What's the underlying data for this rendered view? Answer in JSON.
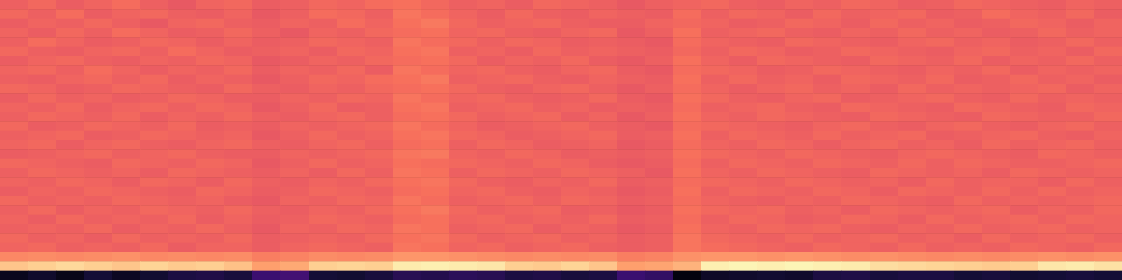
{
  "chart_data": {
    "type": "heatmap",
    "tick_labels": false,
    "xlim": [
      0,
      40
    ],
    "ylim": [
      0,
      30
    ],
    "zlim": [
      0,
      1
    ],
    "x": [
      0.5,
      1.5,
      2.5,
      3.5,
      4.5,
      5.5,
      6.5,
      7.5,
      8.5,
      9.5,
      10.5,
      11.5,
      12.5,
      13.5,
      14.5,
      15.5,
      16.5,
      17.5,
      18.5,
      19.5,
      20.5,
      21.5,
      22.5,
      23.5,
      24.5,
      25.5,
      26.5,
      27.5,
      28.5,
      29.5,
      30.5,
      31.5,
      32.5,
      33.5,
      34.5,
      35.5,
      36.5,
      37.5,
      38.5,
      39.5
    ],
    "y": [
      29.5,
      28.5,
      27.5,
      26.5,
      25.5,
      24.5,
      23.5,
      22.5,
      21.5,
      20.5,
      19.5,
      18.5,
      17.5,
      16.5,
      15.5,
      14.5,
      13.5,
      12.5,
      11.5,
      10.5,
      9.5,
      8.5,
      7.5,
      6.5,
      5.5,
      4.5,
      3.5,
      2.5,
      1.5,
      0.5
    ],
    "z": [
      [
        0.66,
        0.68,
        0.65,
        0.67,
        0.69,
        0.66,
        0.64,
        0.67,
        0.68,
        0.65,
        0.66,
        0.68,
        0.67,
        0.69,
        0.7,
        0.68,
        0.66,
        0.67,
        0.65,
        0.68,
        0.67,
        0.66,
        0.64,
        0.66,
        0.67,
        0.68,
        0.66,
        0.65,
        0.67,
        0.66,
        0.68,
        0.67,
        0.65,
        0.66,
        0.68,
        0.67,
        0.66,
        0.65,
        0.67,
        0.66
      ],
      [
        0.68,
        0.66,
        0.69,
        0.65,
        0.67,
        0.68,
        0.66,
        0.65,
        0.67,
        0.64,
        0.66,
        0.69,
        0.68,
        0.66,
        0.71,
        0.69,
        0.67,
        0.65,
        0.68,
        0.66,
        0.65,
        0.67,
        0.66,
        0.65,
        0.69,
        0.66,
        0.68,
        0.67,
        0.65,
        0.68,
        0.66,
        0.67,
        0.68,
        0.65,
        0.66,
        0.69,
        0.67,
        0.66,
        0.68,
        0.65
      ],
      [
        0.65,
        0.67,
        0.66,
        0.68,
        0.66,
        0.64,
        0.67,
        0.68,
        0.66,
        0.65,
        0.67,
        0.66,
        0.69,
        0.67,
        0.7,
        0.72,
        0.68,
        0.66,
        0.67,
        0.68,
        0.66,
        0.65,
        0.65,
        0.67,
        0.68,
        0.67,
        0.65,
        0.66,
        0.68,
        0.67,
        0.65,
        0.68,
        0.66,
        0.67,
        0.65,
        0.66,
        0.68,
        0.67,
        0.65,
        0.67
      ],
      [
        0.67,
        0.65,
        0.68,
        0.66,
        0.69,
        0.67,
        0.65,
        0.66,
        0.68,
        0.66,
        0.64,
        0.67,
        0.66,
        0.68,
        0.69,
        0.7,
        0.67,
        0.68,
        0.66,
        0.65,
        0.67,
        0.68,
        0.64,
        0.66,
        0.7,
        0.66,
        0.67,
        0.68,
        0.66,
        0.65,
        0.67,
        0.66,
        0.68,
        0.66,
        0.67,
        0.65,
        0.66,
        0.68,
        0.66,
        0.67
      ],
      [
        0.66,
        0.69,
        0.67,
        0.65,
        0.66,
        0.68,
        0.67,
        0.65,
        0.67,
        0.65,
        0.66,
        0.68,
        0.67,
        0.66,
        0.71,
        0.69,
        0.68,
        0.66,
        0.68,
        0.67,
        0.65,
        0.66,
        0.65,
        0.64,
        0.69,
        0.67,
        0.66,
        0.65,
        0.68,
        0.67,
        0.66,
        0.65,
        0.67,
        0.68,
        0.66,
        0.67,
        0.65,
        0.66,
        0.68,
        0.66
      ],
      [
        0.68,
        0.66,
        0.65,
        0.67,
        0.68,
        0.66,
        0.69,
        0.67,
        0.65,
        0.66,
        0.67,
        0.65,
        0.68,
        0.67,
        0.7,
        0.71,
        0.66,
        0.67,
        0.65,
        0.68,
        0.66,
        0.67,
        0.66,
        0.65,
        0.68,
        0.66,
        0.68,
        0.67,
        0.65,
        0.66,
        0.68,
        0.67,
        0.66,
        0.65,
        0.67,
        0.68,
        0.66,
        0.67,
        0.65,
        0.68
      ],
      [
        0.65,
        0.67,
        0.68,
        0.66,
        0.65,
        0.67,
        0.66,
        0.68,
        0.67,
        0.64,
        0.65,
        0.67,
        0.66,
        0.68,
        0.69,
        0.7,
        0.68,
        0.65,
        0.67,
        0.66,
        0.68,
        0.65,
        0.64,
        0.66,
        0.7,
        0.67,
        0.65,
        0.68,
        0.67,
        0.66,
        0.65,
        0.68,
        0.67,
        0.66,
        0.68,
        0.65,
        0.67,
        0.66,
        0.68,
        0.66
      ],
      [
        0.67,
        0.68,
        0.66,
        0.69,
        0.67,
        0.65,
        0.67,
        0.66,
        0.68,
        0.65,
        0.67,
        0.66,
        0.68,
        0.65,
        0.71,
        0.69,
        0.67,
        0.68,
        0.66,
        0.65,
        0.67,
        0.68,
        0.65,
        0.64,
        0.69,
        0.68,
        0.67,
        0.65,
        0.66,
        0.68,
        0.67,
        0.66,
        0.65,
        0.67,
        0.66,
        0.68,
        0.65,
        0.67,
        0.66,
        0.67
      ],
      [
        0.66,
        0.65,
        0.67,
        0.68,
        0.66,
        0.68,
        0.65,
        0.67,
        0.66,
        0.64,
        0.66,
        0.68,
        0.67,
        0.69,
        0.7,
        0.72,
        0.66,
        0.67,
        0.68,
        0.66,
        0.65,
        0.67,
        0.66,
        0.65,
        0.7,
        0.66,
        0.68,
        0.66,
        0.67,
        0.65,
        0.68,
        0.67,
        0.66,
        0.68,
        0.65,
        0.66,
        0.68,
        0.66,
        0.67,
        0.65
      ],
      [
        0.68,
        0.67,
        0.65,
        0.66,
        0.68,
        0.67,
        0.66,
        0.65,
        0.68,
        0.66,
        0.65,
        0.67,
        0.66,
        0.68,
        0.69,
        0.7,
        0.68,
        0.66,
        0.65,
        0.67,
        0.68,
        0.66,
        0.64,
        0.66,
        0.69,
        0.67,
        0.65,
        0.67,
        0.68,
        0.66,
        0.67,
        0.65,
        0.68,
        0.66,
        0.67,
        0.66,
        0.67,
        0.68,
        0.65,
        0.67
      ],
      [
        0.65,
        0.68,
        0.66,
        0.67,
        0.65,
        0.66,
        0.68,
        0.67,
        0.65,
        0.65,
        0.67,
        0.66,
        0.68,
        0.67,
        0.71,
        0.69,
        0.67,
        0.68,
        0.66,
        0.65,
        0.66,
        0.68,
        0.65,
        0.64,
        0.7,
        0.68,
        0.66,
        0.65,
        0.67,
        0.68,
        0.65,
        0.66,
        0.67,
        0.68,
        0.66,
        0.65,
        0.68,
        0.66,
        0.67,
        0.66
      ],
      [
        0.67,
        0.66,
        0.68,
        0.65,
        0.67,
        0.68,
        0.66,
        0.68,
        0.67,
        0.64,
        0.66,
        0.68,
        0.65,
        0.66,
        0.7,
        0.71,
        0.66,
        0.67,
        0.68,
        0.66,
        0.67,
        0.65,
        0.66,
        0.65,
        0.69,
        0.66,
        0.67,
        0.68,
        0.66,
        0.65,
        0.68,
        0.67,
        0.66,
        0.65,
        0.68,
        0.67,
        0.66,
        0.65,
        0.68,
        0.67
      ],
      [
        0.66,
        0.68,
        0.67,
        0.66,
        0.68,
        0.65,
        0.67,
        0.66,
        0.68,
        0.66,
        0.65,
        0.67,
        0.68,
        0.66,
        0.69,
        0.7,
        0.68,
        0.66,
        0.67,
        0.68,
        0.65,
        0.67,
        0.64,
        0.66,
        0.7,
        0.67,
        0.66,
        0.68,
        0.67,
        0.66,
        0.65,
        0.68,
        0.67,
        0.66,
        0.65,
        0.68,
        0.67,
        0.66,
        0.66,
        0.68
      ],
      [
        0.68,
        0.65,
        0.66,
        0.68,
        0.67,
        0.66,
        0.68,
        0.65,
        0.66,
        0.65,
        0.67,
        0.66,
        0.67,
        0.68,
        0.71,
        0.69,
        0.67,
        0.65,
        0.66,
        0.67,
        0.68,
        0.66,
        0.65,
        0.64,
        0.69,
        0.68,
        0.67,
        0.66,
        0.65,
        0.67,
        0.68,
        0.66,
        0.65,
        0.67,
        0.68,
        0.66,
        0.65,
        0.67,
        0.68,
        0.66
      ],
      [
        0.66,
        0.67,
        0.68,
        0.65,
        0.66,
        0.68,
        0.67,
        0.66,
        0.67,
        0.64,
        0.66,
        0.68,
        0.66,
        0.67,
        0.7,
        0.71,
        0.68,
        0.67,
        0.65,
        0.66,
        0.67,
        0.68,
        0.65,
        0.66,
        0.7,
        0.66,
        0.68,
        0.67,
        0.66,
        0.68,
        0.66,
        0.67,
        0.68,
        0.65,
        0.66,
        0.67,
        0.68,
        0.66,
        0.65,
        0.67
      ],
      [
        0.67,
        0.68,
        0.65,
        0.67,
        0.68,
        0.66,
        0.65,
        0.67,
        0.68,
        0.66,
        0.65,
        0.67,
        0.68,
        0.66,
        0.69,
        0.7,
        0.66,
        0.68,
        0.67,
        0.65,
        0.66,
        0.67,
        0.64,
        0.65,
        0.69,
        0.67,
        0.66,
        0.68,
        0.67,
        0.65,
        0.67,
        0.68,
        0.66,
        0.67,
        0.65,
        0.68,
        0.66,
        0.67,
        0.68,
        0.66
      ],
      [
        0.65,
        0.66,
        0.67,
        0.68,
        0.66,
        0.67,
        0.68,
        0.66,
        0.65,
        0.65,
        0.67,
        0.66,
        0.67,
        0.68,
        0.71,
        0.72,
        0.67,
        0.66,
        0.68,
        0.67,
        0.65,
        0.66,
        0.65,
        0.66,
        0.7,
        0.68,
        0.67,
        0.66,
        0.68,
        0.67,
        0.66,
        0.65,
        0.67,
        0.68,
        0.67,
        0.66,
        0.65,
        0.68,
        0.67,
        0.66
      ],
      [
        0.68,
        0.67,
        0.66,
        0.65,
        0.68,
        0.67,
        0.66,
        0.68,
        0.67,
        0.64,
        0.66,
        0.68,
        0.66,
        0.67,
        0.7,
        0.69,
        0.68,
        0.67,
        0.66,
        0.68,
        0.67,
        0.65,
        0.64,
        0.65,
        0.69,
        0.66,
        0.68,
        0.67,
        0.66,
        0.68,
        0.67,
        0.66,
        0.68,
        0.66,
        0.68,
        0.67,
        0.66,
        0.66,
        0.67,
        0.68
      ],
      [
        0.66,
        0.68,
        0.67,
        0.66,
        0.67,
        0.65,
        0.68,
        0.67,
        0.66,
        0.65,
        0.67,
        0.65,
        0.68,
        0.66,
        0.71,
        0.7,
        0.66,
        0.68,
        0.67,
        0.66,
        0.68,
        0.67,
        0.66,
        0.64,
        0.7,
        0.67,
        0.66,
        0.68,
        0.67,
        0.66,
        0.65,
        0.68,
        0.67,
        0.66,
        0.67,
        0.65,
        0.68,
        0.67,
        0.66,
        0.67
      ],
      [
        0.67,
        0.66,
        0.68,
        0.67,
        0.65,
        0.68,
        0.67,
        0.65,
        0.68,
        0.66,
        0.65,
        0.67,
        0.66,
        0.68,
        0.7,
        0.71,
        0.68,
        0.66,
        0.65,
        0.67,
        0.66,
        0.68,
        0.65,
        0.66,
        0.69,
        0.68,
        0.67,
        0.66,
        0.68,
        0.67,
        0.66,
        0.67,
        0.65,
        0.68,
        0.66,
        0.67,
        0.67,
        0.65,
        0.68,
        0.66
      ],
      [
        0.65,
        0.67,
        0.66,
        0.68,
        0.67,
        0.66,
        0.65,
        0.68,
        0.67,
        0.65,
        0.66,
        0.68,
        0.67,
        0.66,
        0.69,
        0.7,
        0.67,
        0.68,
        0.66,
        0.65,
        0.67,
        0.66,
        0.64,
        0.65,
        0.7,
        0.66,
        0.68,
        0.67,
        0.66,
        0.68,
        0.67,
        0.65,
        0.68,
        0.67,
        0.66,
        0.68,
        0.66,
        0.68,
        0.66,
        0.67
      ],
      [
        0.68,
        0.66,
        0.67,
        0.66,
        0.68,
        0.67,
        0.66,
        0.67,
        0.65,
        0.64,
        0.67,
        0.66,
        0.68,
        0.67,
        0.71,
        0.69,
        0.66,
        0.67,
        0.68,
        0.66,
        0.68,
        0.67,
        0.65,
        0.66,
        0.69,
        0.67,
        0.66,
        0.65,
        0.67,
        0.66,
        0.68,
        0.67,
        0.66,
        0.65,
        0.68,
        0.66,
        0.67,
        0.66,
        0.67,
        0.68
      ],
      [
        0.66,
        0.68,
        0.65,
        0.67,
        0.66,
        0.68,
        0.67,
        0.66,
        0.68,
        0.66,
        0.65,
        0.67,
        0.66,
        0.68,
        0.7,
        0.72,
        0.68,
        0.66,
        0.67,
        0.68,
        0.65,
        0.66,
        0.64,
        0.65,
        0.7,
        0.68,
        0.67,
        0.68,
        0.66,
        0.67,
        0.65,
        0.68,
        0.67,
        0.66,
        0.67,
        0.68,
        0.65,
        0.67,
        0.66,
        0.68
      ],
      [
        0.67,
        0.65,
        0.68,
        0.66,
        0.67,
        0.66,
        0.68,
        0.65,
        0.67,
        0.65,
        0.66,
        0.68,
        0.67,
        0.66,
        0.69,
        0.7,
        0.67,
        0.68,
        0.66,
        0.67,
        0.66,
        0.68,
        0.65,
        0.66,
        0.69,
        0.66,
        0.68,
        0.67,
        0.65,
        0.66,
        0.68,
        0.67,
        0.65,
        0.68,
        0.66,
        0.67,
        0.68,
        0.66,
        0.68,
        0.67
      ],
      [
        0.66,
        0.67,
        0.66,
        0.68,
        0.65,
        0.67,
        0.66,
        0.68,
        0.66,
        0.64,
        0.67,
        0.66,
        0.68,
        0.67,
        0.71,
        0.7,
        0.66,
        0.67,
        0.68,
        0.65,
        0.67,
        0.66,
        0.64,
        0.65,
        0.7,
        0.67,
        0.66,
        0.68,
        0.67,
        0.68,
        0.66,
        0.65,
        0.67,
        0.66,
        0.68,
        0.66,
        0.67,
        0.68,
        0.66,
        0.67
      ],
      [
        0.68,
        0.66,
        0.67,
        0.65,
        0.68,
        0.66,
        0.67,
        0.66,
        0.68,
        0.65,
        0.66,
        0.67,
        0.66,
        0.68,
        0.7,
        0.71,
        0.68,
        0.66,
        0.67,
        0.68,
        0.66,
        0.67,
        0.65,
        0.66,
        0.71,
        0.68,
        0.67,
        0.66,
        0.68,
        0.66,
        0.67,
        0.68,
        0.66,
        0.67,
        0.65,
        0.68,
        0.66,
        0.67,
        0.68,
        0.66
      ],
      [
        0.67,
        0.68,
        0.66,
        0.67,
        0.66,
        0.68,
        0.65,
        0.67,
        0.67,
        0.65,
        0.67,
        0.68,
        0.67,
        0.66,
        0.71,
        0.7,
        0.67,
        0.68,
        0.66,
        0.67,
        0.68,
        0.66,
        0.65,
        0.66,
        0.71,
        0.69,
        0.68,
        0.67,
        0.66,
        0.68,
        0.67,
        0.66,
        0.68,
        0.66,
        0.67,
        0.66,
        0.68,
        0.67,
        0.66,
        0.68
      ],
      [
        0.75,
        0.76,
        0.75,
        0.76,
        0.77,
        0.75,
        0.76,
        0.75,
        0.76,
        0.73,
        0.74,
        0.76,
        0.75,
        0.76,
        0.78,
        0.78,
        0.77,
        0.76,
        0.75,
        0.76,
        0.75,
        0.76,
        0.73,
        0.74,
        0.77,
        0.78,
        0.78,
        0.77,
        0.78,
        0.77,
        0.76,
        0.77,
        0.76,
        0.75,
        0.76,
        0.75,
        0.76,
        0.77,
        0.76,
        0.77
      ],
      [
        0.88,
        0.9,
        0.92,
        0.9,
        0.88,
        0.91,
        0.89,
        0.9,
        0.87,
        0.8,
        0.82,
        0.9,
        0.91,
        0.9,
        0.96,
        0.97,
        0.96,
        0.95,
        0.9,
        0.89,
        0.91,
        0.88,
        0.8,
        0.81,
        0.84,
        0.97,
        0.98,
        0.97,
        0.98,
        0.97,
        0.96,
        0.93,
        0.92,
        0.91,
        0.9,
        0.89,
        0.9,
        0.95,
        0.96,
        0.94
      ],
      [
        0.05,
        0.08,
        0.04,
        0.1,
        0.06,
        0.09,
        0.12,
        0.13,
        0.11,
        0.2,
        0.22,
        0.1,
        0.09,
        0.11,
        0.15,
        0.14,
        0.16,
        0.15,
        0.12,
        0.13,
        0.11,
        0.12,
        0.2,
        0.18,
        0.02,
        0.07,
        0.08,
        0.09,
        0.08,
        0.12,
        0.13,
        0.11,
        0.12,
        0.12,
        0.1,
        0.11,
        0.09,
        0.1,
        0.11,
        0.1
      ]
    ]
  }
}
